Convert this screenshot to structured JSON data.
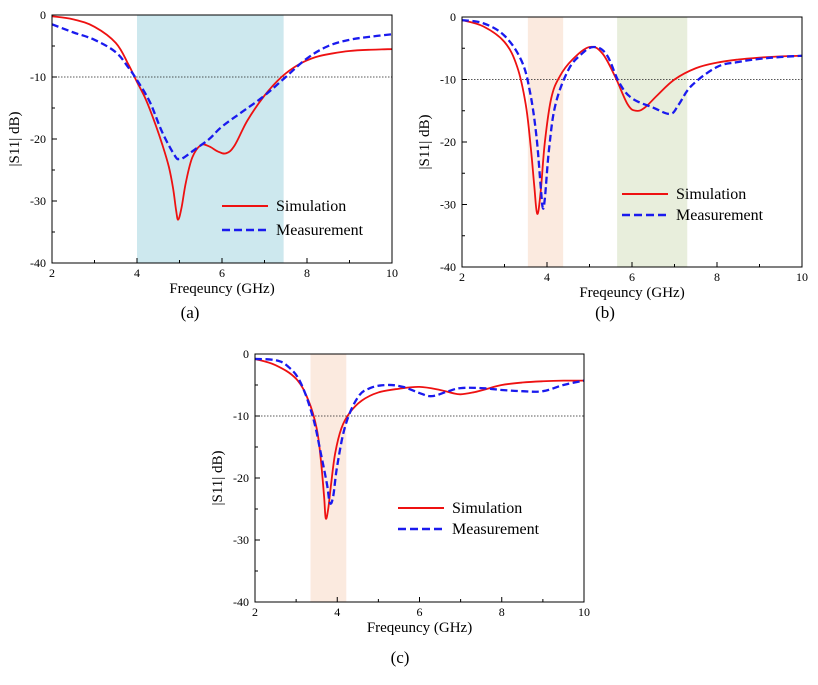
{
  "chart_data": [
    {
      "id": "a",
      "type": "line",
      "panel_label": "(a)",
      "xlabel": "Freqeuncy (GHz)",
      "ylabel": "|S11| dB)",
      "xlim": [
        2,
        10
      ],
      "ylim": [
        -40,
        0
      ],
      "xticks": [
        2,
        4,
        6,
        8,
        10
      ],
      "yticks": [
        0,
        -10,
        -20,
        -30,
        -40
      ],
      "reference_line": -10,
      "highlight_bands": [
        {
          "from": 4.0,
          "to": 7.45,
          "color": "#cde8ee"
        }
      ],
      "legend_position": "bottom-right",
      "series": [
        {
          "name": "Simulation",
          "color": "#ee1111",
          "style": "solid",
          "x": [
            2.0,
            2.5,
            3.0,
            3.5,
            3.8,
            4.0,
            4.2,
            4.4,
            4.6,
            4.75,
            4.85,
            4.92,
            4.97,
            5.05,
            5.15,
            5.3,
            5.5,
            5.7,
            5.9,
            6.1,
            6.3,
            6.6,
            7.0,
            7.4,
            7.8,
            8.2,
            8.6,
            9.0,
            9.5,
            10.0
          ],
          "y": [
            -0.2,
            -0.7,
            -1.9,
            -4.5,
            -8.0,
            -10.8,
            -13.5,
            -17.0,
            -21.0,
            -24.5,
            -28.0,
            -31.5,
            -33.0,
            -31.0,
            -27.0,
            -23.0,
            -21.0,
            -21.2,
            -22.0,
            -22.3,
            -21.0,
            -17.0,
            -13.0,
            -10.0,
            -8.0,
            -6.8,
            -6.2,
            -5.8,
            -5.6,
            -5.5
          ]
        },
        {
          "name": "Measurement",
          "color": "#1a1aee",
          "style": "dashed",
          "x": [
            2.0,
            2.5,
            3.0,
            3.5,
            3.8,
            4.0,
            4.3,
            4.6,
            4.9,
            5.0,
            5.1,
            5.4,
            5.7,
            6.0,
            6.5,
            7.0,
            7.5,
            8.0,
            8.5,
            9.0,
            9.5,
            10.0
          ],
          "y": [
            -1.5,
            -2.8,
            -4.0,
            -6.0,
            -8.5,
            -10.5,
            -14.0,
            -19.0,
            -22.8,
            -23.2,
            -23.0,
            -21.5,
            -20.0,
            -18.0,
            -15.5,
            -13.0,
            -10.0,
            -7.0,
            -5.0,
            -4.0,
            -3.5,
            -3.1
          ]
        }
      ]
    },
    {
      "id": "b",
      "type": "line",
      "panel_label": "(b)",
      "xlabel": "Freqeuncy (GHz)",
      "ylabel": "|S11| dB)",
      "xlim": [
        2,
        10
      ],
      "ylim": [
        -40,
        0
      ],
      "xticks": [
        2,
        4,
        6,
        8,
        10
      ],
      "yticks": [
        0,
        -10,
        -20,
        -30,
        -40
      ],
      "reference_line": -10,
      "highlight_bands": [
        {
          "from": 3.55,
          "to": 4.38,
          "color": "#fbeadf"
        },
        {
          "from": 5.65,
          "to": 7.3,
          "color": "#e8eedc"
        }
      ],
      "legend_position": "center-right",
      "series": [
        {
          "name": "Simulation",
          "color": "#ee1111",
          "style": "solid",
          "x": [
            2.0,
            2.5,
            3.0,
            3.3,
            3.5,
            3.62,
            3.7,
            3.77,
            3.85,
            3.95,
            4.1,
            4.3,
            4.6,
            5.0,
            5.3,
            5.6,
            5.9,
            6.1,
            6.3,
            6.6,
            7.0,
            7.5,
            8.0,
            8.5,
            9.0,
            9.5,
            10.0
          ],
          "y": [
            -0.5,
            -1.5,
            -4.0,
            -8.0,
            -14.0,
            -21.0,
            -27.0,
            -31.5,
            -28.0,
            -20.0,
            -13.0,
            -9.5,
            -6.8,
            -4.8,
            -5.8,
            -9.5,
            -14.0,
            -15.0,
            -14.5,
            -12.5,
            -10.0,
            -8.2,
            -7.3,
            -6.8,
            -6.5,
            -6.3,
            -6.2
          ]
        },
        {
          "name": "Measurement",
          "color": "#1a1aee",
          "style": "dashed",
          "x": [
            2.0,
            2.5,
            3.0,
            3.4,
            3.6,
            3.75,
            3.85,
            3.9,
            3.95,
            4.05,
            4.2,
            4.5,
            4.8,
            5.1,
            5.4,
            5.7,
            6.0,
            6.5,
            6.9,
            7.1,
            7.4,
            8.0,
            8.5,
            9.0,
            9.5,
            10.0
          ],
          "y": [
            -0.5,
            -1.0,
            -3.0,
            -7.0,
            -12.0,
            -19.0,
            -27.0,
            -30.5,
            -29.0,
            -21.0,
            -14.0,
            -8.5,
            -6.0,
            -4.8,
            -6.0,
            -10.5,
            -13.0,
            -14.5,
            -15.5,
            -14.0,
            -11.0,
            -8.0,
            -7.2,
            -6.7,
            -6.4,
            -6.2
          ]
        }
      ]
    },
    {
      "id": "c",
      "type": "line",
      "panel_label": "(c)",
      "xlabel": "Freqeuncy (GHz)",
      "ylabel": "|S11| dB)",
      "xlim": [
        2,
        10
      ],
      "ylim": [
        -40,
        0
      ],
      "xticks": [
        2,
        4,
        6,
        8,
        10
      ],
      "yticks": [
        0,
        -10,
        -20,
        -30,
        -40
      ],
      "reference_line": -10,
      "highlight_bands": [
        {
          "from": 3.35,
          "to": 4.22,
          "color": "#fbeadf"
        }
      ],
      "legend_position": "center-right",
      "series": [
        {
          "name": "Simulation",
          "color": "#ee1111",
          "style": "solid",
          "x": [
            2.0,
            2.5,
            3.0,
            3.3,
            3.5,
            3.6,
            3.68,
            3.72,
            3.78,
            3.85,
            3.95,
            4.1,
            4.3,
            4.6,
            5.0,
            5.5,
            6.0,
            6.5,
            6.8,
            7.0,
            7.3,
            7.6,
            8.0,
            8.5,
            9.0,
            9.5,
            10.0
          ],
          "y": [
            -0.8,
            -1.8,
            -4.0,
            -7.5,
            -12.0,
            -17.0,
            -23.0,
            -26.5,
            -25.0,
            -21.0,
            -16.0,
            -12.0,
            -9.5,
            -7.5,
            -6.2,
            -5.6,
            -5.3,
            -5.8,
            -6.3,
            -6.5,
            -6.2,
            -5.7,
            -5.0,
            -4.6,
            -4.4,
            -4.3,
            -4.3
          ]
        },
        {
          "name": "Measurement",
          "color": "#1a1aee",
          "style": "dashed",
          "x": [
            2.0,
            2.5,
            2.8,
            3.1,
            3.4,
            3.6,
            3.75,
            3.82,
            3.9,
            4.0,
            4.2,
            4.5,
            4.8,
            5.2,
            5.6,
            6.0,
            6.3,
            6.7,
            7.0,
            7.5,
            8.0,
            8.5,
            9.0,
            9.5,
            10.0
          ],
          "y": [
            -0.8,
            -1.0,
            -2.0,
            -4.5,
            -10.0,
            -16.0,
            -21.0,
            -24.0,
            -23.0,
            -18.0,
            -11.5,
            -7.0,
            -5.5,
            -5.0,
            -5.3,
            -6.3,
            -6.8,
            -6.0,
            -5.5,
            -5.5,
            -5.8,
            -6.0,
            -6.0,
            -5.0,
            -4.3
          ]
        }
      ]
    }
  ]
}
